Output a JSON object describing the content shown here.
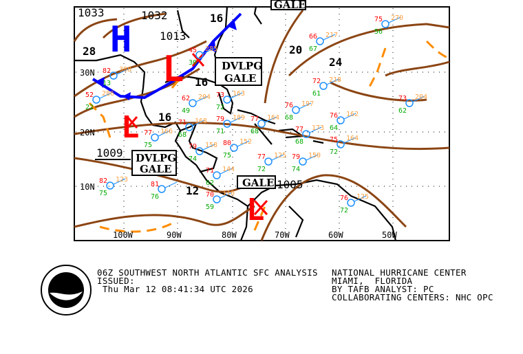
{
  "map": {
    "title": "06Z SOUTHWEST NORTH ATLANTIC SFC ANALYSIS",
    "colors": {
      "isobar": "#8B4513",
      "trough": "#FF8C00",
      "cold_front": "#0000FF",
      "low": "#FF0000",
      "high": "#0000FF",
      "station": "#1E90FF",
      "temp": "#FF0000",
      "dew": "#00AA00",
      "pressure_obs": "#FFA040"
    },
    "lat_labels": [
      "30N",
      "20N",
      "10N"
    ],
    "lon_labels": [
      "100W",
      "90W",
      "80W",
      "70W",
      "60W",
      "50W"
    ],
    "pressure_centers": [
      {
        "type": "H",
        "value": "1033"
      },
      {
        "type": "H",
        "value": "1032"
      },
      {
        "type": "L",
        "value": "1013"
      },
      {
        "type": "L",
        "value": "1009"
      },
      {
        "type": "L",
        "value": "1009"
      },
      {
        "type": "L",
        "value": "1005"
      }
    ],
    "high_symbol": "H",
    "low_symbol": "L",
    "isobar_labels": [
      "28",
      "16",
      "16",
      "16",
      "20",
      "24",
      "16",
      "12"
    ],
    "warnings": [
      {
        "line1": "GALE",
        "line2": ""
      },
      {
        "line1": "DVLPG",
        "line2": "GALE"
      },
      {
        "line1": "DVLPG",
        "line2": "GALE"
      },
      {
        "line1": "GALE",
        "line2": ""
      }
    ],
    "station_values": [
      {
        "t": "82",
        "p": "308",
        "d": "13"
      },
      {
        "t": "45",
        "p": "285",
        "d": "30"
      },
      {
        "t": "52",
        "p": "286",
        "d": "22"
      },
      {
        "t": "62",
        "p": "204",
        "d": "49"
      },
      {
        "t": "71",
        "p": "168",
        "d": "68"
      },
      {
        "t": "77",
        "p": "166",
        "d": "75"
      },
      {
        "t": "73",
        "p": "163",
        "d": "72"
      },
      {
        "t": "79",
        "p": "189",
        "d": "71"
      },
      {
        "t": "77",
        "p": "164",
        "d": "68"
      },
      {
        "t": "76",
        "p": "197",
        "d": "68"
      },
      {
        "t": "77",
        "p": "173",
        "d": "68"
      },
      {
        "t": "72",
        "p": "218",
        "d": "61"
      },
      {
        "t": "76",
        "p": "162",
        "d": "64"
      },
      {
        "t": "73",
        "p": "204",
        "d": "62"
      },
      {
        "t": "75",
        "p": "270",
        "d": "56"
      },
      {
        "t": "66",
        "p": "217",
        "d": "67"
      },
      {
        "t": "79",
        "p": "158",
        "d": "74"
      },
      {
        "t": "80",
        "p": "152",
        "d": "75"
      },
      {
        "t": "71",
        "p": "144",
        "d": "62"
      },
      {
        "t": "81",
        "p": "",
        "d": "76"
      },
      {
        "t": "82",
        "p": "123",
        "d": "75"
      },
      {
        "t": "70",
        "p": "110",
        "d": "59"
      },
      {
        "t": "77",
        "p": "125",
        "d": "72"
      },
      {
        "t": "79",
        "p": "150",
        "d": "74"
      },
      {
        "t": "75",
        "p": "164",
        "d": "72"
      },
      {
        "t": "76",
        "p": "125",
        "d": "72"
      }
    ]
  },
  "footer": {
    "title_line": "06Z SOUTHWEST NORTH ATLANTIC SFC ANALYSIS",
    "issued_label": "ISSUED:",
    "issued_time": " Thu Mar 12 08:41:34 UTC 2026",
    "center": "NATIONAL HURRICANE CENTER",
    "location": "MIAMI,  FLORIDA",
    "analyst": "BY TAFB ANALYST: PC",
    "collab": "COLLABORATING CENTERS: NHC OPC"
  },
  "logo": {
    "text": "NOAA",
    "ring_text": "NATIONAL OCEANIC AND ATMOSPHERIC ADMINISTRATION U.S. DEPARTMENT OF COMMERCE"
  }
}
